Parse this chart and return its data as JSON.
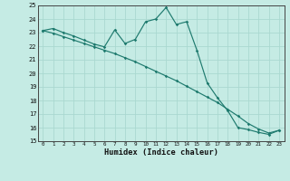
{
  "xlabel": "Humidex (Indice chaleur)",
  "xlim": [
    -0.5,
    23.5
  ],
  "ylim": [
    15,
    25
  ],
  "yticks": [
    15,
    16,
    17,
    18,
    19,
    20,
    21,
    22,
    23,
    24,
    25
  ],
  "xticks": [
    0,
    1,
    2,
    3,
    4,
    5,
    6,
    7,
    8,
    9,
    10,
    11,
    12,
    13,
    14,
    15,
    16,
    17,
    18,
    19,
    20,
    21,
    22,
    23
  ],
  "bg_color": "#c5ebe4",
  "line_color": "#1e7a6e",
  "grid_color": "#aad8d0",
  "curve1_y": [
    23.15,
    23.3,
    23.0,
    22.75,
    22.45,
    22.15,
    21.95,
    23.2,
    22.2,
    22.5,
    23.8,
    24.0,
    24.85,
    23.6,
    23.8,
    21.7,
    19.3,
    18.2,
    17.25,
    16.0,
    15.85,
    15.65,
    15.5,
    15.8
  ],
  "curve2_y": [
    23.15,
    22.95,
    22.7,
    22.45,
    22.2,
    21.95,
    21.7,
    21.45,
    21.15,
    20.85,
    20.5,
    20.15,
    19.8,
    19.45,
    19.05,
    18.65,
    18.25,
    17.85,
    17.35,
    16.85,
    16.3,
    15.9,
    15.6,
    15.8
  ]
}
